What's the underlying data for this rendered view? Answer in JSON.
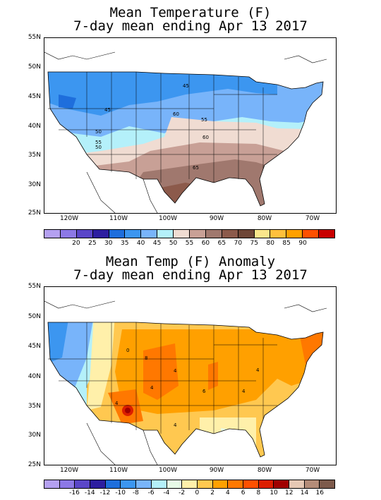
{
  "top": {
    "title_line1": "Mean Temperature (F)",
    "title_line2": "7-day mean ending Apr 13 2017",
    "lat_labels": [
      "55N",
      "50N",
      "45N",
      "40N",
      "35N",
      "30N",
      "25N"
    ],
    "lon_labels": [
      "120W",
      "110W",
      "100W",
      "90W",
      "80W",
      "70W"
    ],
    "contour_labels": [
      "45",
      "45",
      "50",
      "55",
      "60",
      "55",
      "60",
      "65",
      "50"
    ],
    "legend_colors": [
      "#b4a0f0",
      "#8c78e6",
      "#5a46c8",
      "#2d1ea0",
      "#1e6edc",
      "#3c96f0",
      "#78b4fa",
      "#b4f0fa",
      "#f0dcd2",
      "#c8a096",
      "#a0786e",
      "#8c5a4b",
      "#6e4637",
      "#fae68c",
      "#ffc03c",
      "#ffa000",
      "#ff5000",
      "#c80000"
    ],
    "legend_labels": [
      "20",
      "25",
      "30",
      "35",
      "40",
      "45",
      "50",
      "55",
      "60",
      "65",
      "70",
      "75",
      "80",
      "85",
      "90"
    ]
  },
  "bottom": {
    "title_line1": "Mean Temp (F) Anomaly",
    "title_line2": "7-day mean ending Apr 13 2017",
    "lat_labels": [
      "55N",
      "50N",
      "45N",
      "40N",
      "35N",
      "30N",
      "25N"
    ],
    "lon_labels": [
      "120W",
      "110W",
      "100W",
      "90W",
      "80W",
      "70W"
    ],
    "contour_labels": [
      "0",
      "8",
      "4",
      "4",
      "6",
      "4",
      "4",
      "4",
      "4"
    ],
    "legend_colors": [
      "#b4a0f0",
      "#8c78e6",
      "#5a46c8",
      "#2d1ea0",
      "#1e6edc",
      "#3c96f0",
      "#78b4fa",
      "#b4f0fa",
      "#e6fae6",
      "#fff0aa",
      "#ffc850",
      "#ffa000",
      "#ff7800",
      "#ff5000",
      "#dc1e00",
      "#a00000",
      "#e6c8b4",
      "#b48c78",
      "#7d5a4b"
    ],
    "legend_labels": [
      "-16",
      "-14",
      "-12",
      "-10",
      "-8",
      "-6",
      "-4",
      "-2",
      "0",
      "2",
      "4",
      "6",
      "8",
      "10",
      "12",
      "14",
      "16"
    ]
  }
}
